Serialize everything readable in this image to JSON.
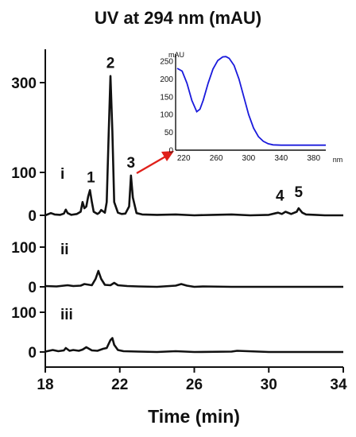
{
  "chart_data": [
    {
      "type": "line",
      "title": "UV at 294 nm (mAU)",
      "xlabel": "Time (min)",
      "xlim": [
        18,
        34
      ],
      "x_ticks": [
        "18",
        "22",
        "26",
        "30",
        "34"
      ],
      "line_color": "#111111",
      "grid": false,
      "series": [
        {
          "name": "i",
          "y_ticks": [
            "300",
            "100",
            "0"
          ],
          "ylim": [
            0,
            320
          ],
          "x": [
            18.0,
            18.3,
            18.5,
            18.8,
            19.0,
            19.1,
            19.2,
            19.4,
            19.7,
            19.9,
            20.0,
            20.1,
            20.2,
            20.3,
            20.4,
            20.5,
            20.6,
            20.8,
            20.9,
            21.0,
            21.2,
            21.3,
            21.4,
            21.5,
            21.6,
            21.7,
            21.9,
            22.1,
            22.3,
            22.5,
            22.6,
            22.7,
            22.9,
            23.2,
            24.0,
            25.0,
            26.0,
            27.0,
            28.0,
            29.0,
            30.0,
            30.4,
            30.5,
            30.7,
            30.9,
            31.2,
            31.5,
            31.6,
            31.8,
            32.0,
            32.5,
            33.0,
            34.0
          ],
          "values": [
            0,
            5,
            2,
            1,
            4,
            13,
            5,
            1,
            3,
            8,
            30,
            16,
            20,
            42,
            57,
            30,
            8,
            3,
            6,
            12,
            6,
            30,
            180,
            315,
            190,
            30,
            6,
            3,
            4,
            20,
            90,
            40,
            5,
            2,
            1,
            2,
            0,
            1,
            2,
            0,
            1,
            5,
            6,
            3,
            8,
            3,
            8,
            16,
            6,
            2,
            1,
            0,
            0
          ],
          "peak_labels": [
            {
              "text": "1",
              "x": 20.45,
              "y": 57
            },
            {
              "text": "2",
              "x": 21.5,
              "y": 315
            },
            {
              "text": "3",
              "x": 22.6,
              "y": 90
            },
            {
              "text": "4",
              "x": 30.6,
              "y": 8
            },
            {
              "text": "5",
              "x": 31.6,
              "y": 16
            }
          ]
        },
        {
          "name": "ii",
          "y_ticks": [
            "100",
            "0"
          ],
          "ylim": [
            0,
            120
          ],
          "x": [
            18.0,
            18.6,
            19.0,
            19.2,
            19.5,
            19.9,
            20.1,
            20.5,
            20.7,
            20.85,
            21.0,
            21.2,
            21.5,
            21.7,
            21.9,
            22.4,
            23.0,
            24.0,
            25.0,
            25.3,
            25.6,
            26.0,
            26.5,
            28.0,
            30.0,
            32.0,
            34.0
          ],
          "values": [
            2,
            1,
            3,
            4,
            2,
            3,
            7,
            4,
            20,
            40,
            20,
            5,
            4,
            10,
            4,
            2,
            1,
            0,
            3,
            7,
            3,
            0,
            1,
            0,
            0,
            0,
            0
          ]
        },
        {
          "name": "iii",
          "y_ticks": [
            "100",
            "0"
          ],
          "ylim": [
            0,
            120
          ],
          "x": [
            18.0,
            18.4,
            18.7,
            19.0,
            19.1,
            19.3,
            19.5,
            19.8,
            20.0,
            20.2,
            20.5,
            20.8,
            21.1,
            21.3,
            21.5,
            21.6,
            21.7,
            21.9,
            22.2,
            23.0,
            24.0,
            25.0,
            26.0,
            28.0,
            28.3,
            30.0,
            32.0,
            34.0
          ],
          "values": [
            1,
            5,
            2,
            4,
            10,
            3,
            5,
            3,
            6,
            12,
            4,
            3,
            8,
            10,
            30,
            35,
            18,
            5,
            2,
            1,
            0,
            2,
            0,
            1,
            3,
            0,
            0,
            0
          ]
        }
      ]
    },
    {
      "type": "line",
      "title": "",
      "ylabel": "mAU",
      "xlabel_unit": "nm",
      "xlim": [
        210,
        395
      ],
      "ylim": [
        0,
        250
      ],
      "x_ticks": [
        "220",
        "260",
        "300",
        "340",
        "380"
      ],
      "y_ticks": [
        "250",
        "200",
        "150",
        "100",
        "50",
        "0"
      ],
      "line_color": "#1a1adc",
      "series": [
        {
          "name": "",
          "x": [
            212,
            218,
            224,
            230,
            236,
            240,
            244,
            250,
            256,
            262,
            268,
            272,
            276,
            282,
            288,
            294,
            300,
            306,
            312,
            318,
            324,
            330,
            340,
            350,
            360,
            380,
            395
          ],
          "values": [
            230,
            222,
            188,
            140,
            108,
            115,
            140,
            188,
            228,
            252,
            262,
            263,
            258,
            238,
            200,
            150,
            100,
            62,
            38,
            25,
            18,
            15,
            14,
            14,
            14,
            14,
            14
          ]
        }
      ]
    }
  ]
}
